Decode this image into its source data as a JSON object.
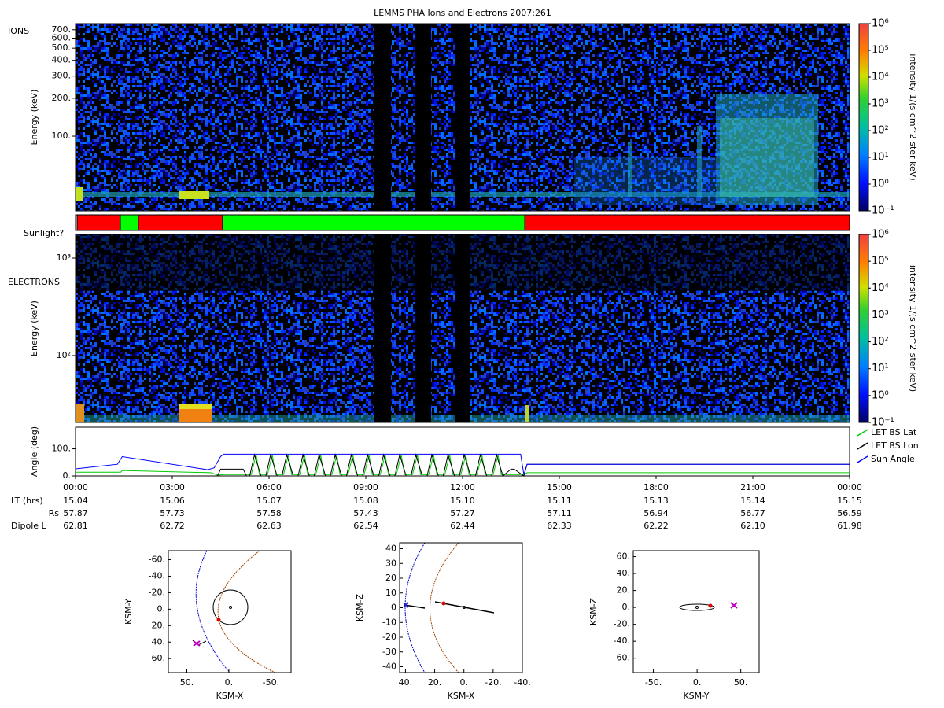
{
  "chart_data": [
    {
      "type": "spectrogram",
      "title": "LEMMS PHA Ions and Electrons  2007:261",
      "panel_label": "IONS",
      "ylabel": "Energy (keV)",
      "log_y": true,
      "ylim": [
        25.5,
        783
      ],
      "yticks": [
        {
          "value": 100,
          "label": "100."
        },
        {
          "value": 200,
          "label": "200."
        },
        {
          "value": 300,
          "label": "300."
        },
        {
          "value": 400,
          "label": "400."
        },
        {
          "value": 500,
          "label": "500."
        },
        {
          "value": 600,
          "label": "600."
        },
        {
          "value": 700,
          "label": "700."
        }
      ],
      "colorbar": {
        "label": "intensity 1/(s cm^2 ster keV)",
        "log": true,
        "lim": [
          0.1,
          1000000
        ],
        "ticks": [
          {
            "value": 0.1,
            "label": "10⁻¹"
          },
          {
            "value": 1,
            "label": "10⁰"
          },
          {
            "value": 10,
            "label": "10¹"
          },
          {
            "value": 100,
            "label": "10²"
          },
          {
            "value": 1000,
            "label": "10³"
          },
          {
            "value": 10000,
            "label": "10⁴"
          },
          {
            "value": 100000,
            "label": "10⁵"
          },
          {
            "value": 1000000,
            "label": "10⁶"
          }
        ]
      }
    },
    {
      "type": "timeline",
      "panel_label": "Sunlight?",
      "xlim": [
        0,
        24
      ],
      "bins": [
        0,
        0.05,
        1.39,
        1.95,
        4.56,
        13.93,
        24
      ],
      "colors": [
        "#ffffff",
        "#ff0000",
        "#00ff00",
        "#ff0000",
        "#00ff00",
        "#ff0000"
      ]
    },
    {
      "type": "spectrogram",
      "panel_label": "ELECTRONS",
      "ylabel": "Energy (keV)",
      "log_y": true,
      "ylim": [
        20.6,
        1746
      ],
      "yticks": [
        {
          "value": 100,
          "label": "10²"
        },
        {
          "value": 1000,
          "label": "10³"
        }
      ],
      "colorbar": {
        "label": "intensity 1/(s cm^2 ster keV)",
        "log": true,
        "lim": [
          0.1,
          1000000
        ],
        "ticks": [
          {
            "value": 0.1,
            "label": "10⁻¹"
          },
          {
            "value": 1,
            "label": "10⁰"
          },
          {
            "value": 10,
            "label": "10¹"
          },
          {
            "value": 100,
            "label": "10²"
          },
          {
            "value": 1000,
            "label": "10³"
          },
          {
            "value": 10000,
            "label": "10⁴"
          },
          {
            "value": 100000,
            "label": "10⁵"
          },
          {
            "value": 1000000,
            "label": "10⁶"
          }
        ]
      }
    },
    {
      "type": "line",
      "ylabel": "Angle (deg)",
      "xlim": [
        0,
        24
      ],
      "ylim": [
        0,
        180
      ],
      "yticks": [
        {
          "value": 0,
          "label": "0."
        },
        {
          "value": 100,
          "label": "100."
        }
      ],
      "xticks": [
        {
          "value": 0,
          "label": "00:00"
        },
        {
          "value": 3,
          "label": "03:00"
        },
        {
          "value": 6,
          "label": "06:00"
        },
        {
          "value": 9,
          "label": "09:00"
        },
        {
          "value": 12,
          "label": "12:00"
        },
        {
          "value": 15,
          "label": "15:00"
        },
        {
          "value": 18,
          "label": "18:00"
        },
        {
          "value": 21,
          "label": "21:00"
        },
        {
          "value": 24,
          "label": "00:00"
        }
      ],
      "series": [
        {
          "name": "LET BS Lat",
          "color": "#00cc00",
          "x": [
            0,
            1.4,
            1.45,
            4.2,
            4.4,
            4.6,
            5.45,
            5.6,
            5.7,
            5.95,
            6.1,
            6.2,
            6.45,
            6.6,
            6.7,
            6.95,
            7.1,
            7.2,
            7.45,
            7.6,
            7.7,
            7.95,
            8.1,
            8.2,
            8.45,
            8.6,
            8.7,
            8.95,
            9.1,
            9.2,
            9.45,
            9.6,
            9.7,
            9.95,
            10.1,
            10.2,
            10.45,
            10.6,
            10.7,
            10.95,
            11.1,
            11.2,
            11.45,
            11.6,
            11.7,
            11.95,
            12.1,
            12.2,
            12.45,
            12.6,
            12.7,
            12.95,
            13.1,
            13.2,
            13.9,
            14.0,
            24
          ],
          "values": [
            14,
            14,
            20,
            12,
            3,
            5,
            5,
            78,
            5,
            5,
            78,
            5,
            5,
            78,
            5,
            5,
            78,
            5,
            5,
            78,
            5,
            5,
            78,
            5,
            5,
            78,
            5,
            5,
            78,
            5,
            5,
            78,
            5,
            5,
            78,
            5,
            5,
            78,
            5,
            5,
            78,
            5,
            5,
            78,
            5,
            5,
            78,
            5,
            5,
            78,
            5,
            5,
            78,
            5,
            5,
            12,
            12
          ]
        },
        {
          "name": "LET BS Lon",
          "color": "#000000",
          "x": [
            0,
            4.4,
            4.5,
            5.2,
            5.3,
            5.4,
            5.55,
            5.75,
            5.9,
            6.05,
            6.25,
            6.4,
            6.55,
            6.75,
            6.9,
            7.05,
            7.25,
            7.4,
            7.55,
            7.75,
            7.9,
            8.05,
            8.25,
            8.4,
            8.55,
            8.75,
            8.9,
            9.05,
            9.25,
            9.4,
            9.55,
            9.75,
            9.9,
            10.05,
            10.25,
            10.4,
            10.55,
            10.75,
            10.9,
            11.05,
            11.25,
            11.4,
            11.55,
            11.75,
            11.9,
            12.05,
            12.25,
            12.4,
            12.55,
            12.75,
            12.9,
            13.05,
            13.25,
            13.5,
            13.6,
            13.9,
            14.0,
            24
          ],
          "values": [
            0,
            0,
            25,
            25,
            0,
            0,
            78,
            0,
            0,
            78,
            0,
            0,
            78,
            0,
            0,
            78,
            0,
            0,
            78,
            0,
            0,
            78,
            0,
            0,
            78,
            0,
            0,
            78,
            0,
            0,
            78,
            0,
            0,
            78,
            0,
            0,
            78,
            0,
            0,
            78,
            0,
            0,
            78,
            0,
            0,
            78,
            0,
            0,
            78,
            0,
            0,
            78,
            0,
            25,
            25,
            0,
            43,
            43
          ]
        },
        {
          "name": "Sun Angle",
          "color": "#0000ff",
          "x": [
            0,
            1.3,
            1.45,
            4.1,
            4.3,
            4.5,
            4.6,
            13.8,
            13.9,
            14.0,
            24
          ],
          "values": [
            26,
            43,
            71,
            23,
            30,
            72,
            80,
            80,
            5,
            43,
            43
          ]
        }
      ]
    },
    {
      "type": "orbit",
      "xlabel": "KSM-X",
      "ylabel": "KSM-Y",
      "xlim": [
        72,
        -74
      ],
      "ylim": [
        77,
        -71
      ],
      "xticks": [
        {
          "value": 50,
          "label": "50."
        },
        {
          "value": 0,
          "label": "0."
        },
        {
          "value": -50,
          "label": "-50."
        }
      ],
      "yticks": [
        {
          "value": -60,
          "label": "-60."
        },
        {
          "value": -40,
          "label": "-40."
        },
        {
          "value": -20,
          "label": "-20."
        },
        {
          "value": 0,
          "label": "0."
        },
        {
          "value": 20,
          "label": "20."
        },
        {
          "value": 40,
          "label": "40."
        },
        {
          "value": 60,
          "label": "60."
        }
      ]
    },
    {
      "type": "orbit",
      "xlabel": "KSM-X",
      "ylabel": "KSM-Z",
      "xlim": [
        44,
        -40
      ],
      "ylim": [
        -44,
        44
      ],
      "xticks": [
        {
          "value": 40,
          "label": "40."
        },
        {
          "value": 20,
          "label": "20."
        },
        {
          "value": 0,
          "label": "0."
        },
        {
          "value": -20,
          "label": "-20."
        },
        {
          "value": -40,
          "label": "-40."
        }
      ],
      "yticks": [
        40,
        30,
        20,
        10,
        0,
        -10,
        -20,
        -30,
        -40
      ]
    },
    {
      "type": "orbit",
      "xlabel": "KSM-Y",
      "ylabel": "KSM-Z",
      "xlim": [
        -73,
        71
      ],
      "ylim": [
        -77,
        67
      ],
      "xticks": [
        {
          "value": -50,
          "label": "-50."
        },
        {
          "value": 0,
          "label": "0."
        },
        {
          "value": 50,
          "label": "50."
        }
      ],
      "yticks": [
        {
          "value": 60,
          "label": "60."
        },
        {
          "value": 40,
          "label": "40."
        },
        {
          "value": 20,
          "label": "20."
        },
        {
          "value": 0,
          "label": "0."
        },
        {
          "value": -20,
          "label": "-20."
        },
        {
          "value": -40,
          "label": "-40."
        },
        {
          "value": -60,
          "label": "-60."
        }
      ]
    }
  ],
  "ephemeris": {
    "rows": [
      {
        "label": "LT (hrs)",
        "values": [
          "15.04",
          "15.06",
          "15.07",
          "15.08",
          "15.10",
          "15.11",
          "15.13",
          "15.14",
          "15.15"
        ]
      },
      {
        "label": "Rs",
        "values": [
          "57.87",
          "57.73",
          "57.58",
          "57.43",
          "57.27",
          "57.11",
          "56.94",
          "56.77",
          "56.59"
        ]
      },
      {
        "label": "Dipole L",
        "values": [
          "62.81",
          "62.72",
          "62.63",
          "62.54",
          "62.44",
          "62.33",
          "62.22",
          "62.10",
          "61.98"
        ]
      }
    ]
  }
}
